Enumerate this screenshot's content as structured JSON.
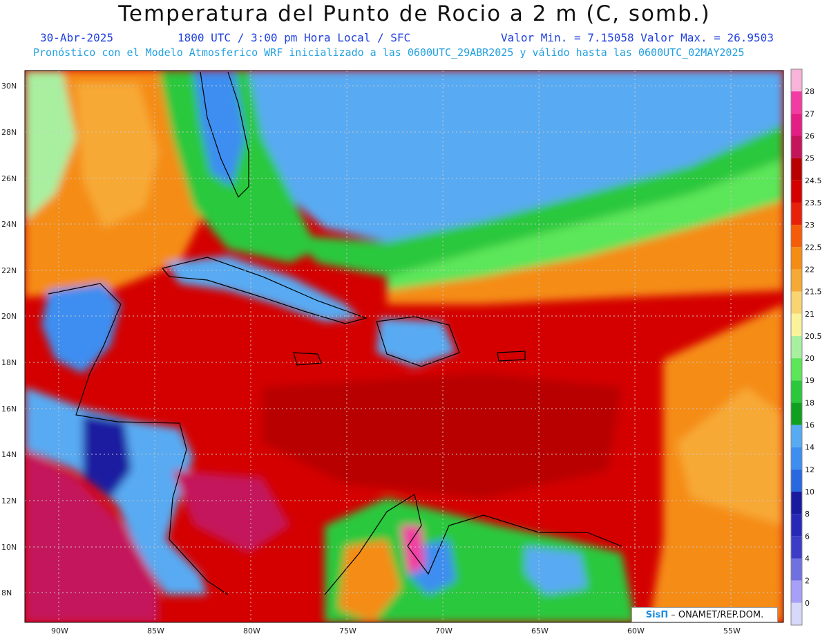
{
  "header": {
    "title": "Temperatura del Punto de Rocio a 2 m (C, somb.)",
    "date": "30-Abr-2025",
    "time": "1800 UTC / 3:00 pm Hora Local / SFC",
    "min_max": "Valor Min. = 7.15058  Valor Max. = 26.9503",
    "model_line": "Pronóstico con el Modelo Atmosferico WRF inicializado a las 0600UTC_29ABR2025 y válido hasta las  0600UTC_02MAY2025"
  },
  "map": {
    "lat_labels": [
      "30N",
      "28N",
      "26N",
      "24N",
      "22N",
      "20N",
      "18N",
      "16N",
      "14N",
      "12N",
      "10N",
      "8N"
    ],
    "lon_labels": [
      "90W",
      "85W",
      "80W",
      "75W",
      "70W",
      "65W",
      "60W",
      "55W"
    ]
  },
  "colorbar": {
    "labels": [
      "28",
      "27",
      "26",
      "25",
      "24.5",
      "23.5",
      "23",
      "22.5",
      "22",
      "21.5",
      "21",
      "20.5",
      "20",
      "19",
      "18",
      "16",
      "14",
      "12",
      "10",
      "8",
      "6",
      "4",
      "2",
      "0"
    ],
    "colors": [
      "#f7b3d8",
      "#f23ca3",
      "#e51e85",
      "#c4145c",
      "#b80000",
      "#d40000",
      "#e8200a",
      "#f55c0a",
      "#f58c14",
      "#f7a935",
      "#f8d572",
      "#fbf39b",
      "#a8f0a0",
      "#5ce65a",
      "#2cc83c",
      "#10a020",
      "#58aaf2",
      "#3d8ef0",
      "#2868e0",
      "#1a1aa0",
      "#2828b8",
      "#3c3cc8",
      "#7070e0",
      "#a8a0f8",
      "#d8d8fa"
    ]
  },
  "credit": {
    "brand": "SisΠ",
    "text": "– ONAMET/REP.DOM."
  }
}
